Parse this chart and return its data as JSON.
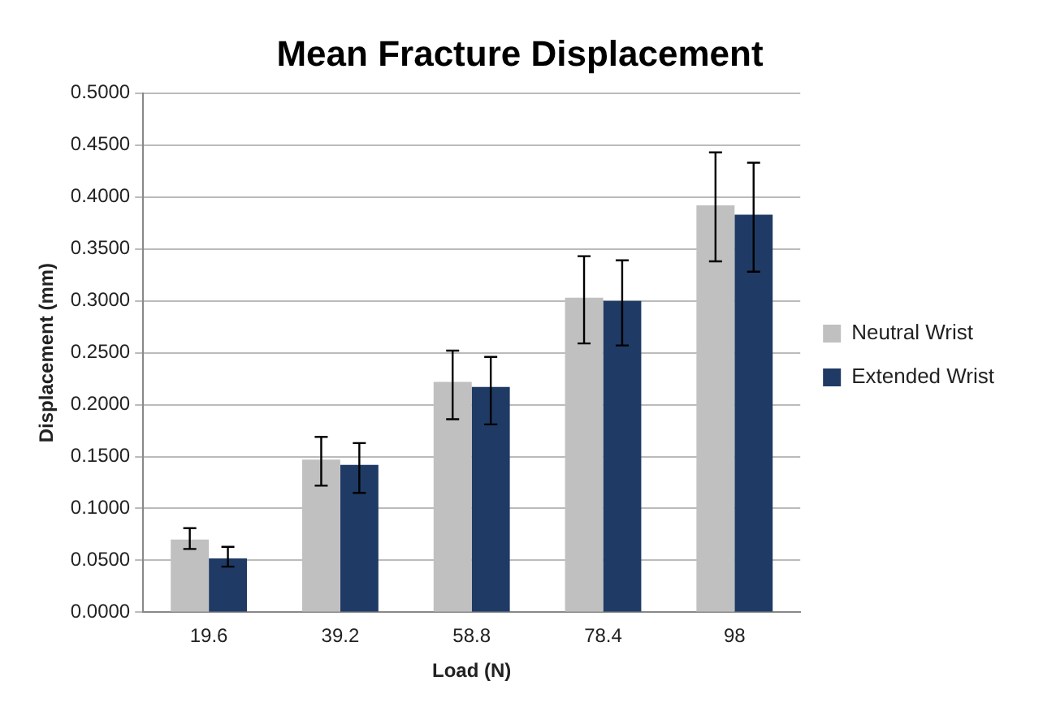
{
  "chart_data": {
    "type": "bar",
    "title": "Mean Fracture Displacement",
    "xlabel": "Load (N)",
    "ylabel": "Displacement (mm)",
    "categories": [
      "19.6",
      "39.2",
      "58.8",
      "78.4",
      "98"
    ],
    "series": [
      {
        "name": "Neutral Wrist",
        "color": "#c0c0c0",
        "values": [
          0.07,
          0.147,
          0.222,
          0.303,
          0.392
        ],
        "errors": [
          [
            0.061,
            0.081
          ],
          [
            0.122,
            0.169
          ],
          [
            0.186,
            0.252
          ],
          [
            0.259,
            0.343
          ],
          [
            0.338,
            0.443
          ]
        ]
      },
      {
        "name": "Extended Wrist",
        "color": "#1f3a64",
        "values": [
          0.052,
          0.142,
          0.217,
          0.3,
          0.383
        ],
        "errors": [
          [
            0.044,
            0.063
          ],
          [
            0.115,
            0.163
          ],
          [
            0.181,
            0.246
          ],
          [
            0.257,
            0.339
          ],
          [
            0.328,
            0.433
          ]
        ]
      }
    ],
    "ylim": [
      0,
      0.5
    ],
    "yticks": [
      {
        "value": 0,
        "label": "0.0000"
      },
      {
        "value": 0.05,
        "label": "0.0500"
      },
      {
        "value": 0.1,
        "label": "0.1000"
      },
      {
        "value": 0.15,
        "label": "0.1500"
      },
      {
        "value": 0.2,
        "label": "0.2000"
      },
      {
        "value": 0.25,
        "label": "0.2500"
      },
      {
        "value": 0.3,
        "label": "0.3000"
      },
      {
        "value": 0.35,
        "label": "0.3500"
      },
      {
        "value": 0.4,
        "label": "0.4000"
      },
      {
        "value": 0.45,
        "label": "0.4500"
      },
      {
        "value": 0.5,
        "label": "0.5000"
      }
    ],
    "grid": "y",
    "legend": "right"
  }
}
